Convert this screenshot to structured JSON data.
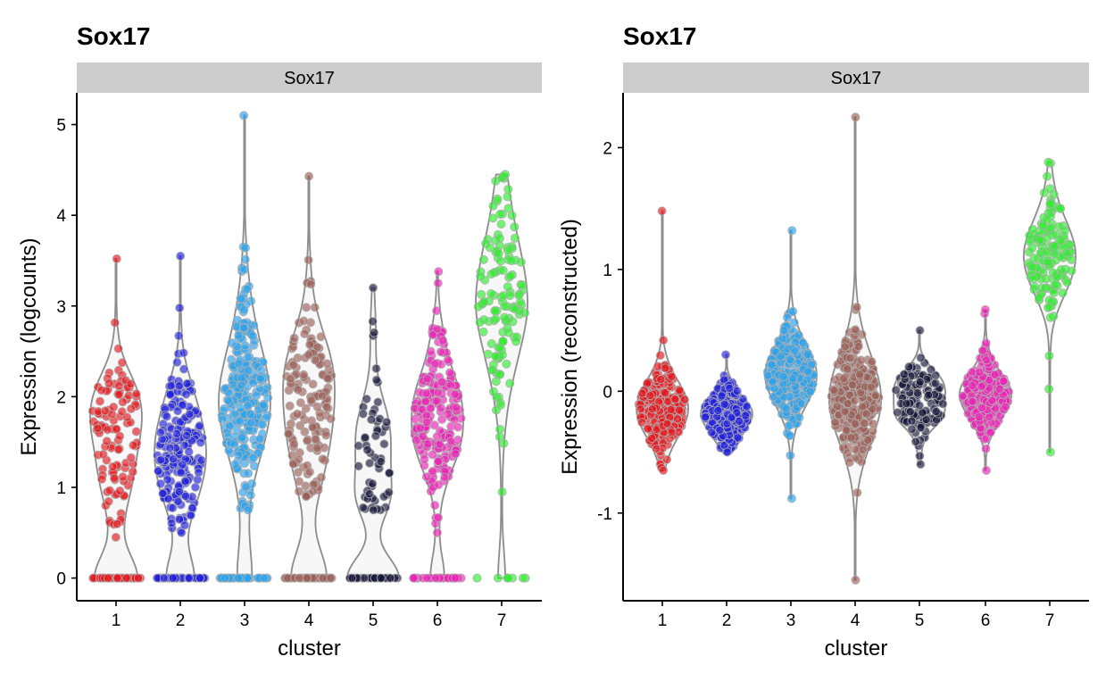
{
  "chart_data": [
    {
      "type": "violin",
      "title": "Sox17",
      "facet_label": "Sox17",
      "xlabel": "cluster",
      "ylabel": "Expression (logcounts)",
      "categories": [
        "1",
        "2",
        "3",
        "4",
        "5",
        "6",
        "7"
      ],
      "yticks": [
        0,
        1,
        2,
        3,
        4,
        5
      ],
      "ylim": [
        -0.25,
        5.35
      ],
      "grid": false,
      "clusters": [
        {
          "cluster": "1",
          "color": "#e8161b",
          "n_cells": 150,
          "n_zero": 40,
          "nonzero_median": 1.5,
          "nonzero_spread": 0.55,
          "min": 0.45,
          "max": 3.52
        },
        {
          "cluster": "2",
          "color": "#1f1fe0",
          "n_cells": 230,
          "n_zero": 45,
          "nonzero_median": 1.35,
          "nonzero_spread": 0.5,
          "min": 0.5,
          "max": 3.55
        },
        {
          "cluster": "3",
          "color": "#27a3ef",
          "n_cells": 300,
          "n_zero": 40,
          "nonzero_median": 2.0,
          "nonzero_spread": 0.6,
          "min": 0.75,
          "max": 5.1
        },
        {
          "cluster": "4",
          "color": "#9c5e55",
          "n_cells": 190,
          "n_zero": 45,
          "nonzero_median": 1.9,
          "nonzero_spread": 0.6,
          "min": 0.9,
          "max": 4.43
        },
        {
          "cluster": "5",
          "color": "#16163a",
          "n_cells": 85,
          "n_zero": 30,
          "nonzero_median": 1.5,
          "nonzero_spread": 0.55,
          "min": 0.75,
          "max": 3.2
        },
        {
          "cluster": "6",
          "color": "#f01fb8",
          "n_cells": 230,
          "n_zero": 25,
          "nonzero_median": 1.75,
          "nonzero_spread": 0.5,
          "min": 0.5,
          "max": 3.38
        },
        {
          "cluster": "7",
          "color": "#2bef2b",
          "n_cells": 140,
          "n_zero": 8,
          "nonzero_median": 3.1,
          "nonzero_spread": 0.65,
          "min": 0.95,
          "max": 4.45
        }
      ]
    },
    {
      "type": "violin",
      "title": "Sox17",
      "facet_label": "Sox17",
      "xlabel": "cluster",
      "ylabel": "Expression (reconstructed)",
      "categories": [
        "1",
        "2",
        "3",
        "4",
        "5",
        "6",
        "7"
      ],
      "yticks": [
        -1,
        0,
        1,
        2
      ],
      "ylim": [
        -1.72,
        2.45
      ],
      "grid": false,
      "clusters": [
        {
          "cluster": "1",
          "color": "#e8161b",
          "n_cells": 240,
          "n_zero": 0,
          "nonzero_median": -0.15,
          "nonzero_spread": 0.17,
          "min": -0.65,
          "max": 1.48
        },
        {
          "cluster": "2",
          "color": "#1f1fe0",
          "n_cells": 230,
          "n_zero": 0,
          "nonzero_median": -0.2,
          "nonzero_spread": 0.14,
          "min": -0.5,
          "max": 0.3
        },
        {
          "cluster": "3",
          "color": "#27a3ef",
          "n_cells": 300,
          "n_zero": 0,
          "nonzero_median": 0.15,
          "nonzero_spread": 0.22,
          "min": -0.88,
          "max": 1.32
        },
        {
          "cluster": "4",
          "color": "#9c5e55",
          "n_cells": 300,
          "n_zero": 0,
          "nonzero_median": -0.05,
          "nonzero_spread": 0.25,
          "min": -1.55,
          "max": 2.25
        },
        {
          "cluster": "5",
          "color": "#16163a",
          "n_cells": 120,
          "n_zero": 0,
          "nonzero_median": -0.1,
          "nonzero_spread": 0.16,
          "min": -0.6,
          "max": 0.5
        },
        {
          "cluster": "6",
          "color": "#f01fb8",
          "n_cells": 220,
          "n_zero": 0,
          "nonzero_median": -0.05,
          "nonzero_spread": 0.17,
          "min": -0.65,
          "max": 0.67
        },
        {
          "cluster": "7",
          "color": "#2bef2b",
          "n_cells": 140,
          "n_zero": 0,
          "nonzero_median": 1.12,
          "nonzero_spread": 0.28,
          "min": -0.5,
          "max": 1.88
        }
      ]
    }
  ]
}
